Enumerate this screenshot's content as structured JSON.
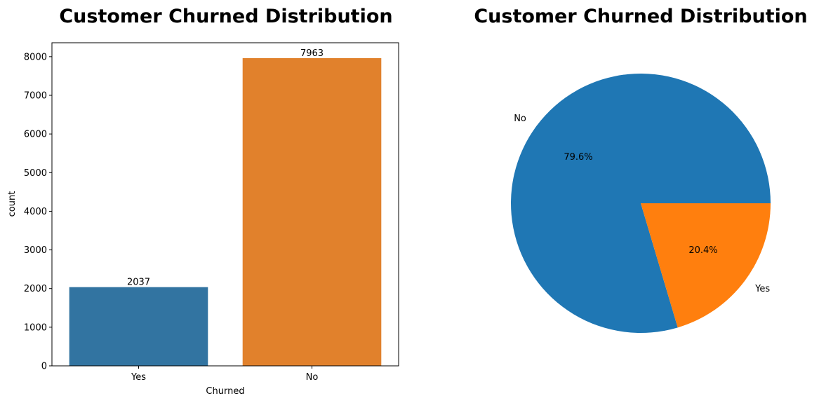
{
  "chart_data": [
    {
      "type": "bar",
      "title": "Customer Churned Distribution",
      "xlabel": "Churned",
      "ylabel": "count",
      "categories": [
        "Yes",
        "No"
      ],
      "values": [
        2037,
        7963
      ],
      "data_labels": [
        "2037",
        "7963"
      ],
      "colors": [
        "#3274a1",
        "#e1812c"
      ],
      "ylim": [
        0,
        8360
      ],
      "yticks": [
        0,
        1000,
        2000,
        3000,
        4000,
        5000,
        6000,
        7000,
        8000
      ],
      "grid": false,
      "legend": "none"
    },
    {
      "type": "pie",
      "title": "Customer Churned Distribution",
      "labels": [
        "No",
        "Yes"
      ],
      "values": [
        79.6,
        20.4
      ],
      "percent_labels": [
        "79.6%",
        "20.4%"
      ],
      "colors": [
        "#1f77b4",
        "#ff7f0e"
      ],
      "start_angle_deg": 0,
      "direction": "counterclockwise",
      "legend": "none"
    }
  ]
}
